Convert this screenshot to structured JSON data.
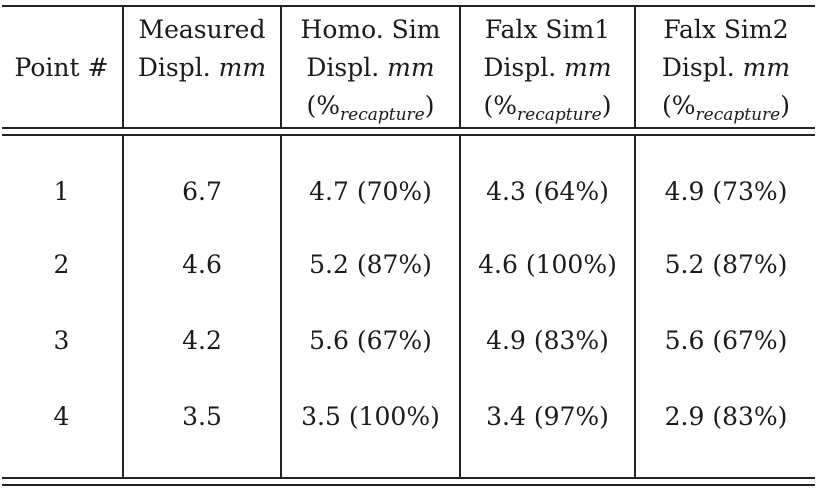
{
  "table": {
    "columns": [
      {
        "line1": "",
        "line2": "Point #",
        "unit": "",
        "recap": false
      },
      {
        "line1": "Measured",
        "line2": "Displ.",
        "unit": "mm",
        "recap": false
      },
      {
        "line1": "Homo. Sim",
        "line2": "Displ.",
        "unit": "mm",
        "recap": true
      },
      {
        "line1": "Falx Sim1",
        "line2": "Displ.",
        "unit": "mm",
        "recap": true
      },
      {
        "line1": "Falx Sim2",
        "line2": "Displ.",
        "unit": "mm",
        "recap": true
      }
    ],
    "recapture_label": {
      "open": "(%",
      "sub": "recapture",
      "close": ")"
    },
    "rows": [
      [
        "1",
        "6.7",
        "4.7 (70%)",
        "4.3 (64%)",
        "4.9 (73%)"
      ],
      [
        "2",
        "4.6",
        "5.2 (87%)",
        "4.6 (100%)",
        "5.2 (87%)"
      ],
      [
        "3",
        "4.2",
        "5.6 (67%)",
        "4.9 (83%)",
        "5.6 (67%)"
      ],
      [
        "4",
        "3.5",
        "3.5 (100%)",
        "3.4 (97%)",
        "2.9 (83%)"
      ]
    ]
  }
}
